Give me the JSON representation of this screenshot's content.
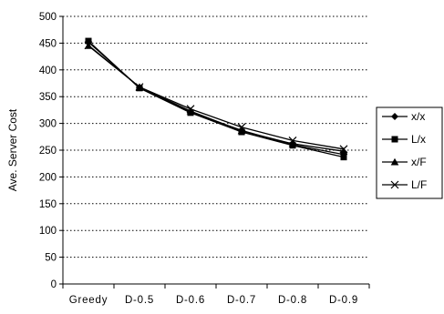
{
  "chart_data": {
    "type": "line",
    "categories": [
      "Greedy",
      "D-0.5",
      "D-0.6",
      "D-0.7",
      "D-0.8",
      "D-0.9"
    ],
    "series": [
      {
        "name": "x/x",
        "marker": "diamond",
        "values": [
          452,
          367,
          321,
          287,
          260,
          242
        ]
      },
      {
        "name": "L/x",
        "marker": "square",
        "values": [
          454,
          366,
          320,
          284,
          259,
          237
        ]
      },
      {
        "name": "x/F",
        "marker": "triangle",
        "values": [
          445,
          368,
          323,
          286,
          262,
          248
        ]
      },
      {
        "name": "L/F",
        "marker": "x",
        "values": [
          446,
          368,
          327,
          293,
          268,
          252
        ]
      }
    ],
    "title": "",
    "xlabel": "",
    "ylabel": "Ave. Server Cost",
    "ylim": [
      0,
      500
    ],
    "yticks": [
      0,
      50,
      100,
      150,
      200,
      250,
      300,
      350,
      400,
      450,
      500
    ],
    "grid": "horizontal dotted",
    "legend_position": "right",
    "line_color": "#000000"
  }
}
